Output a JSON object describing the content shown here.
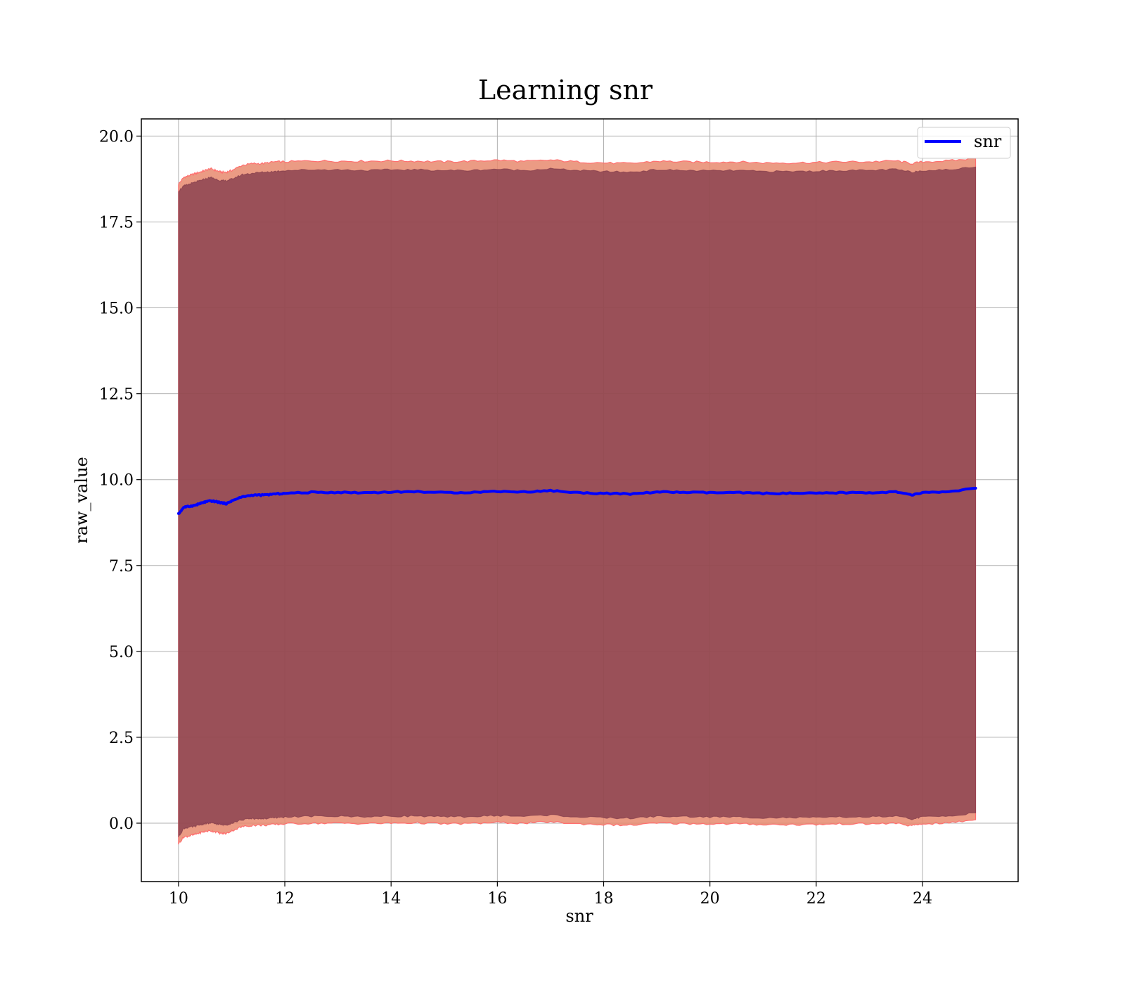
{
  "chart_data": {
    "type": "line",
    "title": "Learning snr",
    "xlabel": "snr",
    "ylabel": "raw_value",
    "xlim": [
      9.3,
      25.8
    ],
    "ylim": [
      -1.7,
      20.5
    ],
    "xticks": [
      10,
      12,
      14,
      16,
      18,
      20,
      22,
      24
    ],
    "xtick_labels": [
      "10",
      "12",
      "14",
      "16",
      "18",
      "20",
      "22",
      "24"
    ],
    "yticks": [
      0,
      2.5,
      5,
      7.5,
      10,
      12.5,
      15,
      17.5,
      20
    ],
    "ytick_labels": [
      "0.0",
      "2.5",
      "5.0",
      "7.5",
      "10.0",
      "12.5",
      "15.0",
      "17.5",
      "20.0"
    ],
    "grid": true,
    "legend_position": "top-right",
    "colors": {
      "line": "#0000ff",
      "band_outer": "#e88a6f",
      "band_outer_edge": "#ff6f6f",
      "band_inner": "#7a3346",
      "grid": "#b0b0b0"
    },
    "series": [
      {
        "name": "snr",
        "x": [
          10,
          10.1,
          10.2,
          10.3,
          10.4,
          10.5,
          10.6,
          10.7,
          10.8,
          10.9,
          11,
          11.2,
          11.4,
          11.6,
          11.8,
          12,
          12.5,
          13,
          13.5,
          14,
          14.5,
          15,
          15.5,
          16,
          16.5,
          17,
          17.5,
          18,
          18.5,
          19,
          19.5,
          20,
          20.5,
          21,
          21.5,
          22,
          22.5,
          23,
          23.5,
          23.8,
          24,
          24.5,
          25
        ],
        "values": [
          9.0,
          9.2,
          9.22,
          9.25,
          9.3,
          9.35,
          9.38,
          9.36,
          9.33,
          9.3,
          9.38,
          9.5,
          9.55,
          9.55,
          9.58,
          9.6,
          9.63,
          9.63,
          9.62,
          9.64,
          9.65,
          9.62,
          9.63,
          9.66,
          9.64,
          9.68,
          9.62,
          9.6,
          9.58,
          9.64,
          9.63,
          9.62,
          9.62,
          9.6,
          9.6,
          9.6,
          9.62,
          9.62,
          9.64,
          9.55,
          9.62,
          9.65,
          9.75
        ],
        "band_outer_upper": [
          18.6,
          18.8,
          18.85,
          18.9,
          18.95,
          19.0,
          19.05,
          19.0,
          18.95,
          18.95,
          19.0,
          19.15,
          19.2,
          19.2,
          19.25,
          19.25,
          19.28,
          19.27,
          19.27,
          19.28,
          19.27,
          19.25,
          19.27,
          19.3,
          19.26,
          19.3,
          19.25,
          19.22,
          19.2,
          19.27,
          19.25,
          19.24,
          19.25,
          19.22,
          19.22,
          19.23,
          19.25,
          19.25,
          19.28,
          19.2,
          19.25,
          19.28,
          19.35
        ],
        "band_inner_upper": [
          18.4,
          18.55,
          18.6,
          18.65,
          18.7,
          18.75,
          18.8,
          18.75,
          18.7,
          18.7,
          18.75,
          18.88,
          18.92,
          18.95,
          18.97,
          19.0,
          19.02,
          19.02,
          19.0,
          19.02,
          19.02,
          19.0,
          19.0,
          19.04,
          19.0,
          19.05,
          19.0,
          18.97,
          18.95,
          19.02,
          19.0,
          18.99,
          19.0,
          18.97,
          18.97,
          18.98,
          19.0,
          19.0,
          19.03,
          18.95,
          19.0,
          19.02,
          19.1
        ],
        "band_inner_lower": [
          -0.4,
          -0.15,
          -0.12,
          -0.1,
          -0.05,
          -0.02,
          0.0,
          -0.02,
          -0.05,
          -0.05,
          0.0,
          0.1,
          0.13,
          0.13,
          0.15,
          0.18,
          0.2,
          0.2,
          0.19,
          0.2,
          0.21,
          0.18,
          0.19,
          0.22,
          0.2,
          0.24,
          0.18,
          0.16,
          0.14,
          0.2,
          0.19,
          0.18,
          0.18,
          0.16,
          0.16,
          0.16,
          0.18,
          0.18,
          0.2,
          0.12,
          0.18,
          0.21,
          0.3
        ],
        "band_outer_lower": [
          -0.6,
          -0.4,
          -0.37,
          -0.33,
          -0.28,
          -0.24,
          -0.22,
          -0.25,
          -0.3,
          -0.3,
          -0.22,
          -0.1,
          -0.06,
          -0.06,
          -0.04,
          -0.02,
          0.0,
          0.0,
          -0.01,
          0.0,
          0.01,
          -0.02,
          -0.01,
          0.02,
          0.0,
          0.04,
          -0.02,
          -0.04,
          -0.06,
          0.0,
          -0.01,
          -0.02,
          -0.02,
          -0.04,
          -0.04,
          -0.04,
          -0.02,
          -0.02,
          0.0,
          -0.08,
          -0.02,
          0.01,
          0.1
        ]
      }
    ]
  }
}
